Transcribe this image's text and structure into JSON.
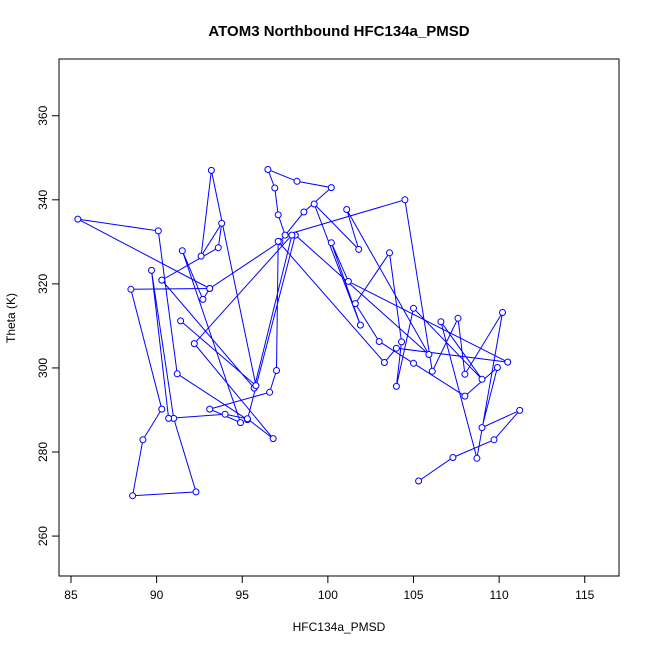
{
  "chart_data": {
    "type": "line",
    "title": "ATOM3 Northbound HFC134a_PMSD",
    "xlabel": "HFC134a_PMSD",
    "ylabel": "Theta (K)",
    "xlim": [
      84.3,
      117.0
    ],
    "ylim": [
      250.5,
      373.5
    ],
    "x_ticks": [
      85,
      90,
      95,
      100,
      105,
      110,
      115
    ],
    "y_ticks": [
      260,
      280,
      300,
      320,
      340,
      360
    ],
    "grid": false,
    "legend": "none",
    "markers": "open circles",
    "color": "#0000ff",
    "series": [
      {
        "points": [
          [
            105.3,
            273.1
          ],
          [
            107.3,
            278.7
          ],
          [
            109.7,
            282.9
          ],
          [
            111.2,
            289.9
          ],
          [
            109.0,
            285.8
          ],
          [
            109.9,
            300.1
          ],
          [
            108.0,
            293.3
          ],
          [
            105.0,
            301.1
          ],
          [
            103.0,
            306.3
          ],
          [
            101.6,
            315.3
          ],
          [
            103.6,
            327.4
          ],
          [
            104.3,
            306.2
          ],
          [
            104.0,
            295.6
          ],
          [
            105.0,
            314.2
          ],
          [
            109.0,
            297.3
          ],
          [
            106.6,
            311.0
          ],
          [
            108.7,
            278.5
          ],
          [
            110.2,
            313.2
          ],
          [
            108.0,
            298.5
          ],
          [
            107.6,
            311.8
          ],
          [
            106.1,
            299.2
          ],
          [
            104.5,
            340.0
          ],
          [
            97.5,
            331.6
          ],
          [
            97.1,
            336.4
          ],
          [
            96.9,
            342.8
          ],
          [
            96.5,
            347.2
          ],
          [
            98.2,
            344.4
          ],
          [
            100.2,
            342.9
          ],
          [
            98.6,
            337.1
          ],
          [
            97.2,
            330.0
          ],
          [
            93.1,
            318.9
          ],
          [
            92.7,
            316.3
          ],
          [
            91.5,
            327.9
          ],
          [
            94.9,
            287.0
          ],
          [
            93.1,
            290.2
          ],
          [
            96.6,
            294.2
          ],
          [
            97.0,
            299.4
          ],
          [
            97.1,
            330.1
          ],
          [
            103.3,
            301.3
          ],
          [
            104.0,
            304.7
          ],
          [
            110.5,
            301.4
          ],
          [
            101.2,
            320.6
          ],
          [
            100.2,
            329.8
          ],
          [
            101.9,
            310.2
          ],
          [
            99.2,
            339.0
          ],
          [
            101.8,
            328.2
          ],
          [
            101.1,
            337.7
          ],
          [
            105.9,
            303.2
          ],
          [
            98.1,
            331.6
          ],
          [
            95.3,
            287.7
          ],
          [
            91.2,
            298.6
          ],
          [
            90.1,
            332.6
          ],
          [
            85.4,
            335.4
          ],
          [
            93.1,
            318.9
          ],
          [
            88.5,
            318.7
          ],
          [
            90.3,
            290.2
          ],
          [
            89.2,
            282.9
          ],
          [
            88.6,
            269.6
          ],
          [
            92.3,
            270.5
          ],
          [
            91.0,
            288.0
          ],
          [
            89.7,
            323.2
          ],
          [
            90.7,
            288.0
          ],
          [
            94.0,
            289.0
          ],
          [
            95.3,
            287.9
          ],
          [
            96.8,
            283.2
          ],
          [
            92.2,
            305.8
          ],
          [
            97.9,
            331.6
          ],
          [
            95.7,
            295.2
          ],
          [
            90.3,
            320.9
          ],
          [
            93.6,
            328.6
          ],
          [
            93.8,
            334.4
          ],
          [
            92.6,
            326.6
          ],
          [
            93.2,
            347.0
          ],
          [
            95.8,
            295.8
          ],
          [
            91.4,
            311.2
          ]
        ]
      }
    ]
  }
}
